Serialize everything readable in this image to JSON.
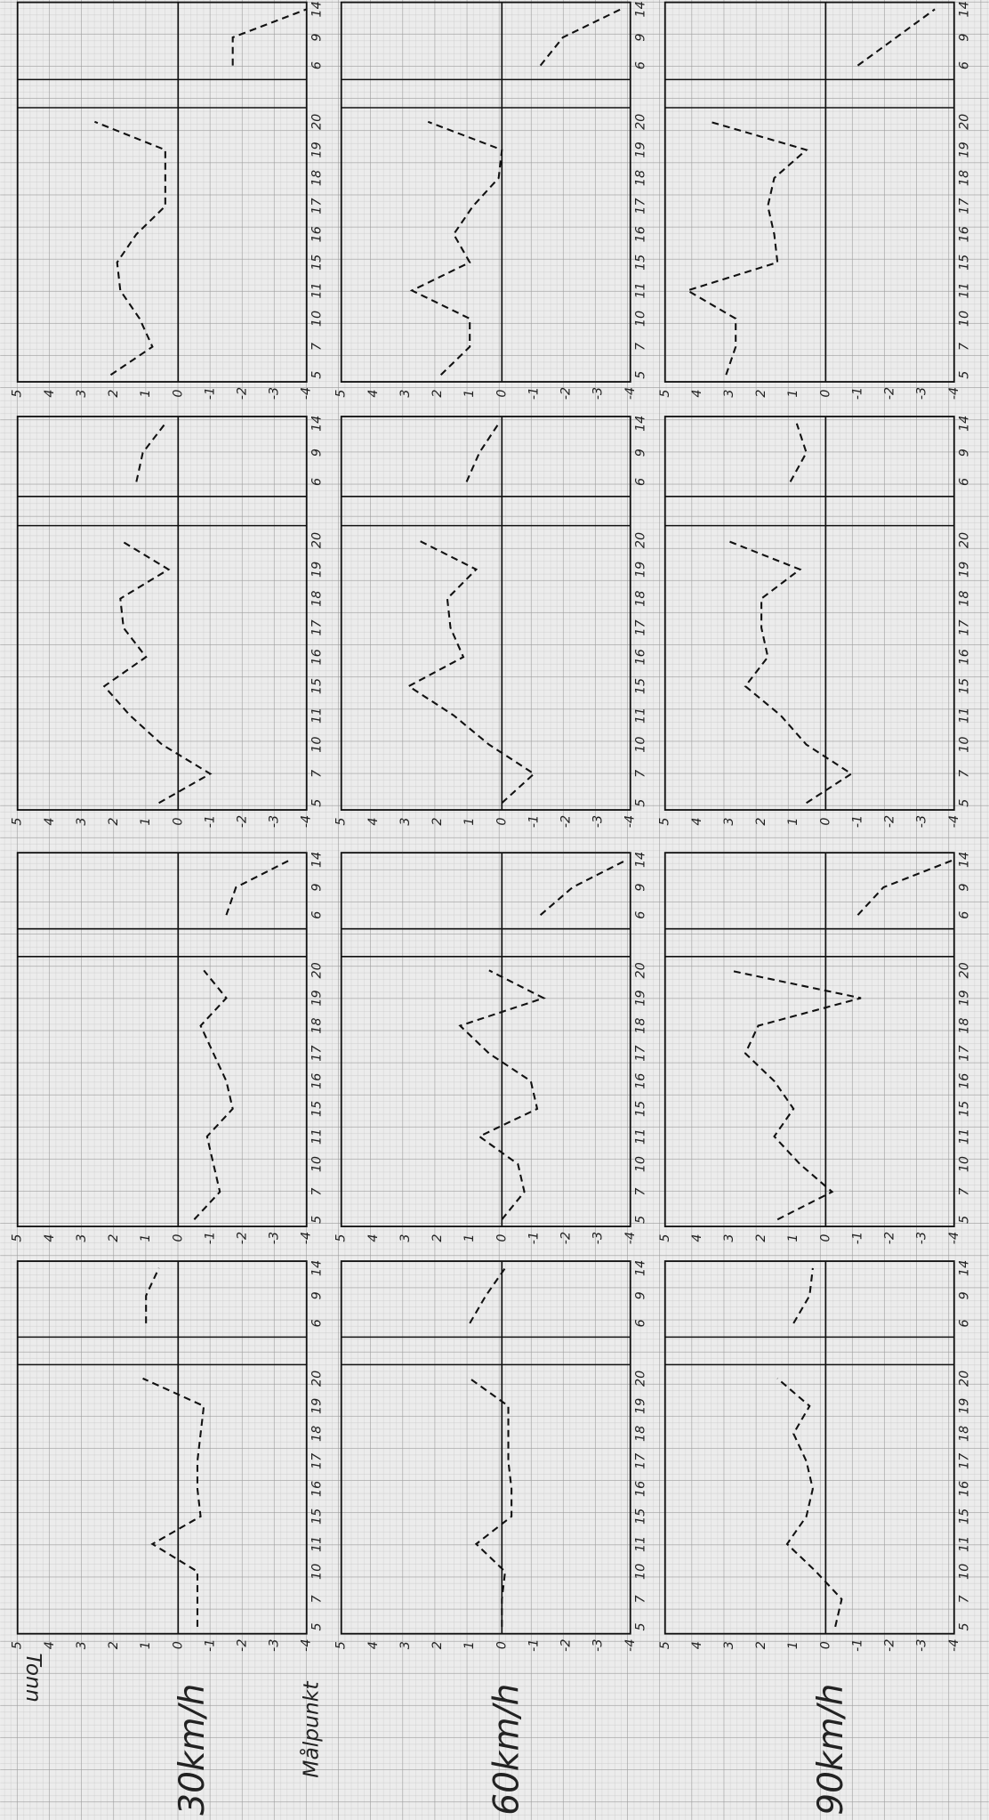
{
  "labels": {
    "unit": "Tonn",
    "reference": "Målpunkt",
    "speeds": [
      "30km/h",
      "60km/h",
      "90km/h"
    ]
  },
  "chart_data": [
    {
      "type": "line",
      "categories": [
        "5",
        "7",
        "10",
        "11",
        "15",
        "16",
        "17",
        "18",
        "19",
        "20",
        null,
        "6",
        "9",
        "14"
      ],
      "values": [
        -0.6,
        -0.6,
        -0.6,
        0.8,
        -0.7,
        -0.6,
        -0.6,
        -0.7,
        -0.8,
        1.1,
        null,
        1.0,
        1.0,
        0.6
      ],
      "ylim": [
        -4,
        5
      ],
      "yticks": [
        5,
        4,
        3,
        2,
        1,
        0,
        -1,
        -2,
        -3,
        -4
      ],
      "color": "#111111"
    },
    {
      "type": "line",
      "categories": [
        "5",
        "7",
        "10",
        "11",
        "15",
        "16",
        "17",
        "18",
        "19",
        "20",
        null,
        "6",
        "9",
        "14"
      ],
      "values": [
        0,
        0,
        -0.1,
        0.8,
        -0.3,
        -0.3,
        -0.2,
        -0.2,
        -0.2,
        1.0,
        null,
        1.0,
        0.5,
        -0.1
      ],
      "ylim": [
        -4,
        5
      ],
      "yticks": [
        5,
        4,
        3,
        2,
        1,
        0,
        -1,
        -2,
        -3,
        -4
      ],
      "color": "#111111"
    },
    {
      "type": "line",
      "categories": [
        "5",
        "7",
        "10",
        "11",
        "15",
        "16",
        "17",
        "18",
        "19",
        "20",
        null,
        "6",
        "9",
        "14"
      ],
      "values": [
        -0.3,
        -0.5,
        0.3,
        1.2,
        0.6,
        0.4,
        0.6,
        1.0,
        0.5,
        1.5,
        null,
        1.0,
        0.5,
        0.4
      ],
      "ylim": [
        -4,
        5
      ],
      "yticks": [
        5,
        4,
        3,
        2,
        1,
        0,
        -1,
        -2,
        -3,
        -4
      ],
      "color": "#111111"
    },
    {
      "type": "line",
      "categories": [
        "5",
        "7",
        "10",
        "11",
        "15",
        "16",
        "17",
        "18",
        "19",
        "20",
        null,
        "6",
        "9",
        "14"
      ],
      "values": [
        -0.5,
        -1.3,
        -1.1,
        -0.9,
        -1.7,
        -1.5,
        -1.1,
        -0.7,
        -1.5,
        -0.8,
        null,
        -1.5,
        -1.8,
        -3.5
      ],
      "ylim": [
        -4,
        5
      ],
      "yticks": [
        5,
        4,
        3,
        2,
        1,
        0,
        -1,
        -2,
        -3,
        -4
      ],
      "color": "#111111"
    },
    {
      "type": "line",
      "categories": [
        "5",
        "7",
        "10",
        "11",
        "15",
        "16",
        "17",
        "18",
        "19",
        "20",
        null,
        "6",
        "9",
        "14"
      ],
      "values": [
        0,
        -0.7,
        -0.5,
        0.7,
        -1.1,
        -0.9,
        0.4,
        1.3,
        -1.3,
        0.4,
        null,
        -1.2,
        -2.2,
        -3.9
      ],
      "ylim": [
        -4,
        5
      ],
      "yticks": [
        5,
        4,
        3,
        2,
        1,
        0,
        -1,
        -2,
        -3,
        -4
      ],
      "color": "#111111"
    },
    {
      "type": "line",
      "categories": [
        "5",
        "7",
        "10",
        "11",
        "15",
        "16",
        "17",
        "18",
        "19",
        "20",
        null,
        "6",
        "9",
        "14"
      ],
      "values": [
        1.5,
        -0.2,
        0.8,
        1.6,
        1.0,
        1.6,
        2.5,
        2.1,
        -1.1,
        3.0,
        null,
        -1.0,
        -1.8,
        -4.0
      ],
      "ylim": [
        -4,
        5
      ],
      "yticks": [
        5,
        4,
        3,
        2,
        1,
        0,
        -1,
        -2,
        -3,
        -4
      ],
      "color": "#111111"
    },
    {
      "type": "line",
      "categories": [
        "5",
        "7",
        "10",
        "11",
        "15",
        "16",
        "17",
        "18",
        "19",
        "20",
        null,
        "6",
        "9",
        "14"
      ],
      "values": [
        0.6,
        -1.0,
        0.5,
        1.5,
        2.3,
        1.0,
        1.7,
        1.8,
        0.3,
        1.8,
        null,
        1.3,
        1.1,
        0.4
      ],
      "ylim": [
        -4,
        5
      ],
      "yticks": [
        5,
        4,
        3,
        2,
        1,
        0,
        -1,
        -2,
        -3,
        -4
      ],
      "color": "#111111"
    },
    {
      "type": "line",
      "categories": [
        "5",
        "7",
        "10",
        "11",
        "15",
        "16",
        "17",
        "18",
        "19",
        "20",
        null,
        "6",
        "9",
        "14"
      ],
      "values": [
        0,
        -1.0,
        0.4,
        1.5,
        2.9,
        1.2,
        1.6,
        1.7,
        0.8,
        2.6,
        null,
        1.1,
        0.7,
        0.1
      ],
      "ylim": [
        -4,
        5
      ],
      "yticks": [
        5,
        4,
        3,
        2,
        1,
        0,
        -1,
        -2,
        -3,
        -4
      ],
      "color": "#111111"
    },
    {
      "type": "line",
      "categories": [
        "5",
        "7",
        "10",
        "11",
        "15",
        "16",
        "17",
        "18",
        "19",
        "20",
        null,
        "6",
        "9",
        "14"
      ],
      "values": [
        0.6,
        -0.8,
        0.6,
        1.4,
        2.5,
        1.8,
        2.0,
        2.0,
        0.8,
        3.1,
        null,
        1.1,
        0.6,
        0.9
      ],
      "ylim": [
        -4,
        5
      ],
      "yticks": [
        5,
        4,
        3,
        2,
        1,
        0,
        -1,
        -2,
        -3,
        -4
      ],
      "color": "#111111"
    },
    {
      "type": "line",
      "categories": [
        "5",
        "7",
        "10",
        "11",
        "15",
        "16",
        "17",
        "18",
        "19",
        "20",
        null,
        "6",
        "9",
        "14"
      ],
      "values": [
        2.1,
        0.8,
        1.2,
        1.8,
        1.9,
        1.3,
        0.4,
        0.4,
        0.4,
        2.6,
        null,
        -1.7,
        -1.7,
        -4.0
      ],
      "ylim": [
        -4,
        5
      ],
      "yticks": [
        5,
        4,
        3,
        2,
        1,
        0,
        -1,
        -2,
        -3,
        -4
      ],
      "color": "#111111"
    },
    {
      "type": "line",
      "categories": [
        "5",
        "7",
        "10",
        "11",
        "15",
        "16",
        "17",
        "18",
        "19",
        "20",
        null,
        "6",
        "9",
        "14"
      ],
      "values": [
        1.9,
        1.0,
        1.0,
        2.8,
        1.0,
        1.5,
        0.9,
        0.1,
        0,
        2.3,
        null,
        -1.2,
        -1.9,
        -3.7
      ],
      "ylim": [
        -4,
        5
      ],
      "yticks": [
        5,
        4,
        3,
        2,
        1,
        0,
        -1,
        -2,
        -3,
        -4
      ],
      "color": "#111111"
    },
    {
      "type": "line",
      "categories": [
        "5",
        "7",
        "10",
        "11",
        "15",
        "16",
        "17",
        "18",
        "19",
        "20",
        null,
        "6",
        "9",
        "14"
      ],
      "values": [
        3.1,
        2.8,
        2.8,
        4.3,
        1.5,
        1.6,
        1.8,
        1.6,
        0.6,
        3.6,
        null,
        -1.0,
        -2.2,
        -3.4
      ],
      "ylim": [
        -4,
        5
      ],
      "yticks": [
        5,
        4,
        3,
        2,
        1,
        0,
        -1,
        -2,
        -3,
        -4
      ],
      "color": "#111111"
    }
  ]
}
